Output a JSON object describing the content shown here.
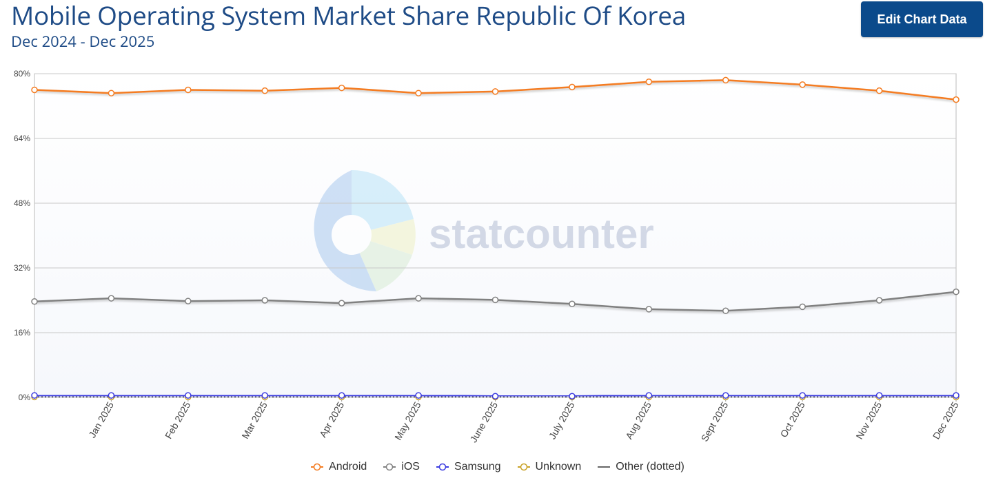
{
  "header": {
    "title": "Mobile Operating System Market Share Republic Of Korea",
    "subtitle": "Dec 2024 - Dec 2025",
    "edit_button": "Edit Chart Data"
  },
  "watermark": {
    "text": "statcounter"
  },
  "colors": {
    "title": "#1e4b86",
    "button_bg": "#0b4a8b",
    "android": "#f47b20",
    "ios": "#808080",
    "samsung": "#3a3ae0",
    "unknown": "#c9a227",
    "other": "#666666"
  },
  "chart_data": {
    "type": "line",
    "categories": [
      "Dec 2024",
      "Jan 2025",
      "Feb 2025",
      "Mar 2025",
      "Apr 2025",
      "May 2025",
      "June 2025",
      "July 2025",
      "Aug 2025",
      "Sept 2025",
      "Oct 2025",
      "Nov 2025",
      "Dec 2025"
    ],
    "x_tick_labels": [
      "Jan 2025",
      "Feb 2025",
      "Mar 2025",
      "Apr 2025",
      "May 2025",
      "June 2025",
      "July 2025",
      "Aug 2025",
      "Sept 2025",
      "Oct 2025",
      "Nov 2025",
      "Dec 2025"
    ],
    "y_ticks": [
      "0%",
      "16%",
      "32%",
      "48%",
      "64%",
      "80%"
    ],
    "ylim": [
      0,
      80
    ],
    "grid": true,
    "legend_position": "bottom-center",
    "series": [
      {
        "name": "Android",
        "color": "#f47b20",
        "style": "line",
        "values": [
          76.0,
          75.2,
          76.0,
          75.8,
          76.5,
          75.2,
          75.6,
          76.7,
          78.0,
          78.4,
          77.3,
          75.8,
          73.6
        ]
      },
      {
        "name": "iOS",
        "color": "#808080",
        "style": "line",
        "values": [
          23.7,
          24.5,
          23.8,
          24.0,
          23.3,
          24.5,
          24.1,
          23.1,
          21.8,
          21.4,
          22.4,
          24.0,
          26.1
        ]
      },
      {
        "name": "Samsung",
        "color": "#3a3ae0",
        "style": "line",
        "values": [
          0.5,
          0.5,
          0.5,
          0.5,
          0.5,
          0.5,
          0.3,
          0.3,
          0.5,
          0.5,
          0.5,
          0.5,
          0.5
        ]
      },
      {
        "name": "Unknown",
        "color": "#c9a227",
        "style": "line",
        "values": [
          0.1,
          0.1,
          0.1,
          0.1,
          0.1,
          0.1,
          0.1,
          0.1,
          0.1,
          0.1,
          0.1,
          0.1,
          0.1
        ]
      },
      {
        "name": "Other (dotted)",
        "color": "#666666",
        "style": "dotted",
        "values": [
          0.1,
          0.1,
          0.1,
          0.1,
          0.1,
          0.1,
          0.1,
          0.1,
          0.1,
          0.1,
          0.1,
          0.1,
          0.1
        ]
      }
    ]
  }
}
